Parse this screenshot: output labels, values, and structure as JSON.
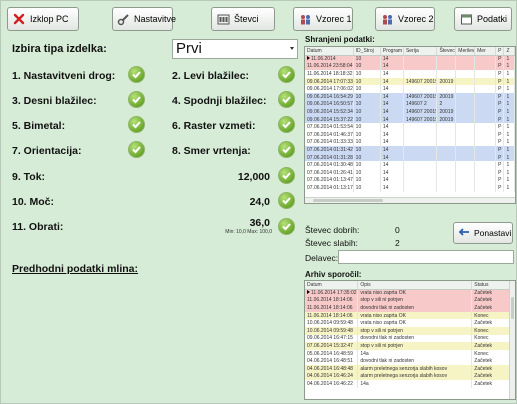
{
  "toolbar": {
    "buttons": [
      {
        "id": "izklop",
        "label": "Izklop PC",
        "icon": "close-x-icon"
      },
      {
        "id": "nastavitve",
        "label": "Nastavitve",
        "icon": "wrench-icon"
      },
      {
        "id": "stevci",
        "label": "Števci",
        "icon": "counter-icon"
      },
      {
        "id": "vzorec1",
        "label": "Vzorec 1",
        "icon": "people-icon"
      },
      {
        "id": "vzorec2",
        "label": "Vzorec 2",
        "icon": "people-icon"
      },
      {
        "id": "podatki",
        "label": "Podatki",
        "icon": "window-icon"
      }
    ]
  },
  "left": {
    "product_type_label": "Izbira tipa izdelka:",
    "product_type_value": "Prvi",
    "checks": [
      {
        "label": "1. Nastavitveni drog:"
      },
      {
        "label": "2. Levi blažilec:"
      },
      {
        "label": "3. Desni blažilec:"
      },
      {
        "label": "4. Spodnji blažilec:"
      },
      {
        "label": "5. Bimetal:"
      },
      {
        "label": "6. Raster vzmeti:"
      },
      {
        "label": "7. Orientacija:"
      },
      {
        "label": "8. Smer vrtenja:"
      }
    ],
    "measures": [
      {
        "label": "9. Tok:",
        "value": "12,000"
      },
      {
        "label": "10. Moč:",
        "value": "24,0"
      },
      {
        "label": "11. Obrati:",
        "value": "36,0",
        "range": "Min: 10,0  Max: 100,0"
      }
    ],
    "previous_label": "Predhodni podatki mlina:"
  },
  "right": {
    "saved_title": "Shranjeni podatki:",
    "saved_columns": [
      "Datum",
      "ID_Stroj",
      "Program",
      "Serija",
      "Števec",
      "Merilev",
      "Mer",
      "P",
      "Z"
    ],
    "saved_rows": [
      {
        "c": [
          "11.06.2014",
          "10",
          "14",
          "",
          "",
          "",
          "",
          "P",
          "1"
        ],
        "color": "red",
        "sel": true
      },
      {
        "c": [
          "11.06.2014 23:58:04",
          "10",
          "14",
          "",
          "",
          "",
          "",
          "P",
          "1"
        ],
        "color": "red"
      },
      {
        "c": [
          "11.06.2014 18:18:32",
          "10",
          "14",
          "",
          "",
          "",
          "",
          "P",
          "1"
        ],
        "color": "wht"
      },
      {
        "c": [
          "09.06.2014 17:07:33",
          "10",
          "14",
          "149607 20019",
          "20019",
          "",
          "",
          "P",
          "1"
        ],
        "color": "yel"
      },
      {
        "c": [
          "09.06.2014 17:06:02",
          "10",
          "14",
          "",
          "",
          "",
          "",
          "P",
          "1"
        ],
        "color": "wht"
      },
      {
        "c": [
          "09.06.2014 16:54:29",
          "10",
          "14",
          "149607 20019",
          "20019",
          "",
          "",
          "P",
          "1"
        ],
        "color": "blu"
      },
      {
        "c": [
          "09.06.2014 16:50:57",
          "10",
          "14",
          "149607 2",
          "2",
          "",
          "",
          "P",
          "1"
        ],
        "color": "blu"
      },
      {
        "c": [
          "09.06.2014 15:52:34",
          "10",
          "14",
          "149607 20019",
          "20019",
          "",
          "",
          "P",
          "1"
        ],
        "color": "blu"
      },
      {
        "c": [
          "09.06.2014 15:37:22",
          "10",
          "14",
          "149607 20019",
          "20019",
          "",
          "",
          "P",
          "1"
        ],
        "color": "blu"
      },
      {
        "c": [
          "07.06.2014 01:53:54",
          "10",
          "14",
          "",
          "",
          "",
          "",
          "P",
          "1"
        ],
        "color": "wht"
      },
      {
        "c": [
          "07.06.2014 01:46:37",
          "10",
          "14",
          "",
          "",
          "",
          "",
          "P",
          "1"
        ],
        "color": "wht"
      },
      {
        "c": [
          "07.06.2014 01:33:33",
          "10",
          "14",
          "",
          "",
          "",
          "",
          "P",
          "1"
        ],
        "color": "wht"
      },
      {
        "c": [
          "07.06.2014 01:31:42",
          "10",
          "14",
          "",
          "",
          "",
          "",
          "P",
          "1"
        ],
        "color": "blu"
      },
      {
        "c": [
          "07.06.2014 01:31:28",
          "10",
          "14",
          "",
          "",
          "",
          "",
          "P",
          "1"
        ],
        "color": "blu"
      },
      {
        "c": [
          "07.06.2014 01:30:48",
          "10",
          "14",
          "",
          "",
          "",
          "",
          "P",
          "1"
        ],
        "color": "wht"
      },
      {
        "c": [
          "07.06.2014 01:26:41",
          "10",
          "14",
          "",
          "",
          "",
          "",
          "P",
          "1"
        ],
        "color": "wht"
      },
      {
        "c": [
          "07.06.2014 01:13:47",
          "10",
          "14",
          "",
          "",
          "",
          "",
          "P",
          "1"
        ],
        "color": "wht"
      },
      {
        "c": [
          "07.06.2014 01:13:17",
          "10",
          "14",
          "",
          "",
          "",
          "",
          "P",
          "1"
        ],
        "color": "wht"
      }
    ],
    "good_label": "Števec dobrih:",
    "good_value": "0",
    "bad_label": "Števec slabih:",
    "bad_value": "2",
    "reset_label": "Ponastavi",
    "worker_label": "Delavec:",
    "worker_value": "",
    "log_title": "Arhiv sporočil:",
    "log_columns": [
      "Datum",
      "Opis",
      "Status"
    ],
    "log_rows": [
      {
        "c": [
          "11.06.2014 17:35:02",
          "vrata niso zaprta OK",
          "Začetek"
        ],
        "color": "red",
        "sel": true
      },
      {
        "c": [
          "11.06.2014 18:14:06",
          "stop v sili ni potrjen",
          "Začetek"
        ],
        "color": "red"
      },
      {
        "c": [
          "11.06.2014 18:14:06",
          "dovodni tlak ni zadosten",
          "Začetek"
        ],
        "color": "red"
      },
      {
        "c": [
          "11.06.2014 18:14:06",
          "vrata niso zaprta OK",
          "Konec"
        ],
        "color": "yel"
      },
      {
        "c": [
          "10.06.2014 09:59:48",
          "vrata niso zaprta OK",
          "Začetek"
        ],
        "color": "wht"
      },
      {
        "c": [
          "10.06.2014 09:59:48",
          "stop v sili ni potrjen",
          "Konec"
        ],
        "color": "yel"
      },
      {
        "c": [
          "09.06.2014 16:47:15",
          "dovodni tlak ni zadosten",
          "Konec"
        ],
        "color": "wht"
      },
      {
        "c": [
          "07.06.2014 15:32:47",
          "stop v sili ni potrjen",
          "Začetek"
        ],
        "color": "yel"
      },
      {
        "c": [
          "05.06.2014 16:48:59",
          "14a",
          "Konec"
        ],
        "color": "wht"
      },
      {
        "c": [
          "04.06.2014 16:48:51",
          "dovodni tlak ni zadosten",
          "Začetek"
        ],
        "color": "wht"
      },
      {
        "c": [
          "04.06.2014 16:48:48",
          "alarm preletnega senzorja slabih kosov",
          "Začetek"
        ],
        "color": "yel"
      },
      {
        "c": [
          "04.06.2014 16:46:24",
          "alarm preletnega senzorja slabih kosov",
          "Začetek"
        ],
        "color": "yel"
      },
      {
        "c": [
          "04.06.2014 16:46:22",
          "14a",
          "Začetek"
        ],
        "color": "wht"
      }
    ]
  }
}
